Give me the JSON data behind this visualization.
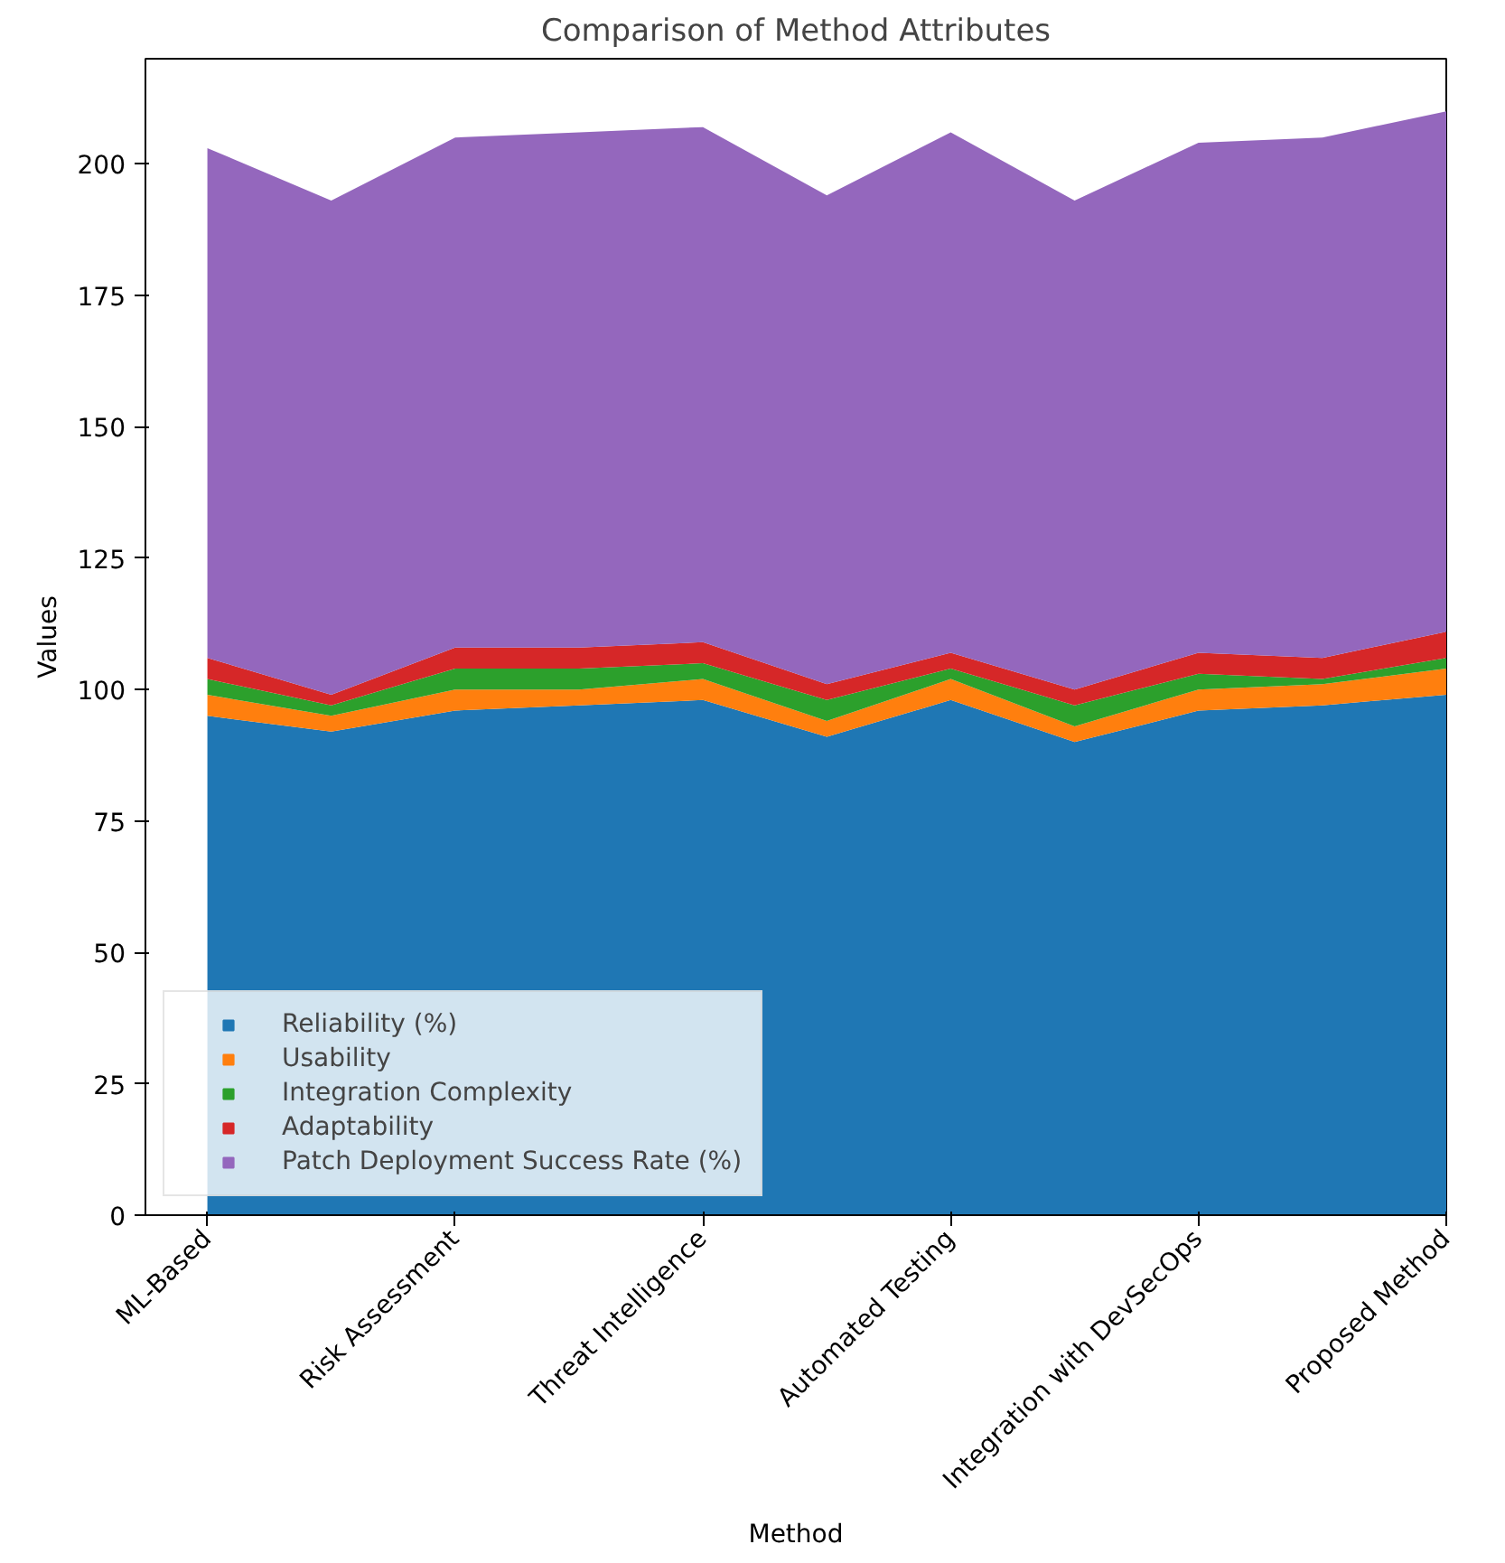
{
  "chart_data": {
    "type": "area",
    "stacked": true,
    "title": "Comparison of Method Attributes",
    "xlabel": "Method",
    "ylabel": "Values",
    "categories": [
      "ML-Based",
      null,
      "Risk Assessment",
      null,
      "Threat Intelligence",
      null,
      "Automated Testing",
      null,
      "Integration with DevSecOps",
      null,
      "Proposed Method"
    ],
    "series": [
      {
        "name": "Reliability (%)",
        "color": "#1f77b4",
        "values": [
          95,
          92,
          96,
          97,
          98,
          91,
          98,
          90,
          96,
          97,
          99
        ]
      },
      {
        "name": "Usability",
        "color": "#ff7f0e",
        "values": [
          4,
          3,
          4,
          3,
          4,
          3,
          4,
          3,
          4,
          4,
          5
        ]
      },
      {
        "name": "Integration Complexity",
        "color": "#2ca02c",
        "values": [
          3,
          2,
          4,
          4,
          3,
          4,
          2,
          4,
          3,
          1,
          2
        ]
      },
      {
        "name": "Adaptability",
        "color": "#d62728",
        "values": [
          4,
          2,
          4,
          4,
          4,
          3,
          3,
          3,
          4,
          4,
          5
        ]
      },
      {
        "name": "Patch Deployment Success Rate (%)",
        "color": "#9467bd",
        "values": [
          97,
          94,
          97,
          98,
          98,
          93,
          99,
          93,
          97,
          99,
          99
        ]
      }
    ],
    "ylim": [
      0,
      220
    ],
    "yticks": [
      0,
      25,
      50,
      75,
      100,
      125,
      150,
      175,
      200
    ],
    "grid": false,
    "legend": "bottom left"
  }
}
